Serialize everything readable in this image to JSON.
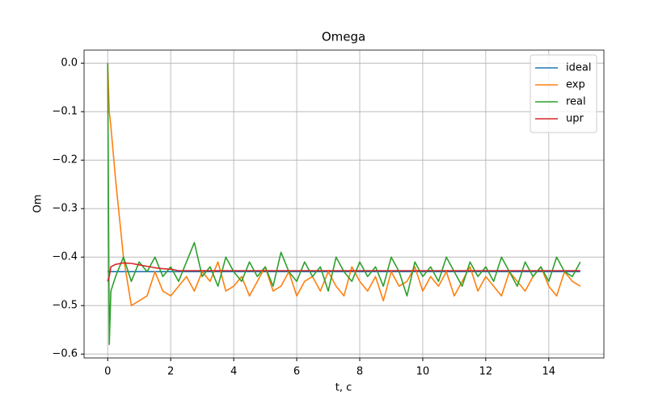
{
  "chart_data": {
    "type": "line",
    "title": "Omega",
    "x_label": "t, c",
    "y_label": "Om",
    "x": [
      0,
      0.05,
      0.1,
      0.25,
      0.5,
      0.75,
      1,
      1.25,
      1.5,
      1.75,
      2,
      2.25,
      2.5,
      2.75,
      3,
      3.25,
      3.5,
      3.75,
      4,
      4.25,
      4.5,
      4.75,
      5,
      5.25,
      5.5,
      5.75,
      6,
      6.25,
      6.5,
      6.75,
      7,
      7.25,
      7.5,
      7.75,
      8,
      8.25,
      8.5,
      8.75,
      9,
      9.25,
      9.5,
      9.75,
      10,
      10.25,
      10.5,
      10.75,
      11,
      11.25,
      11.5,
      11.75,
      12,
      12.25,
      12.5,
      12.75,
      13,
      13.25,
      13.5,
      13.75,
      14,
      14.25,
      14.5,
      14.75,
      15
    ],
    "series": [
      {
        "name": "ideal",
        "color": "#1f77b4",
        "values": [
          -0.43,
          -0.43,
          -0.43,
          -0.43,
          -0.43,
          -0.43,
          -0.43,
          -0.43,
          -0.43,
          -0.43,
          -0.43,
          -0.43,
          -0.43,
          -0.43,
          -0.43,
          -0.43,
          -0.43,
          -0.43,
          -0.43,
          -0.43,
          -0.43,
          -0.43,
          -0.43,
          -0.43,
          -0.43,
          -0.43,
          -0.43,
          -0.43,
          -0.43,
          -0.43,
          -0.43,
          -0.43,
          -0.43,
          -0.43,
          -0.43,
          -0.43,
          -0.43,
          -0.43,
          -0.43,
          -0.43,
          -0.43,
          -0.43,
          -0.43,
          -0.43,
          -0.43,
          -0.43,
          -0.43,
          -0.43,
          -0.43,
          -0.43,
          -0.43,
          -0.43,
          -0.43,
          -0.43,
          -0.43,
          -0.43,
          -0.43,
          -0.43,
          -0.43,
          -0.43,
          -0.43,
          -0.43,
          -0.43
        ]
      },
      {
        "name": "exp",
        "color": "#ff7f0e",
        "values": [
          0,
          -0.1,
          -0.13,
          -0.24,
          -0.4,
          -0.5,
          -0.49,
          -0.48,
          -0.43,
          -0.47,
          -0.48,
          -0.46,
          -0.44,
          -0.47,
          -0.43,
          -0.45,
          -0.41,
          -0.47,
          -0.46,
          -0.44,
          -0.48,
          -0.45,
          -0.42,
          -0.47,
          -0.46,
          -0.43,
          -0.48,
          -0.45,
          -0.44,
          -0.47,
          -0.43,
          -0.46,
          -0.48,
          -0.42,
          -0.45,
          -0.47,
          -0.44,
          -0.49,
          -0.43,
          -0.46,
          -0.45,
          -0.42,
          -0.47,
          -0.44,
          -0.46,
          -0.43,
          -0.48,
          -0.45,
          -0.42,
          -0.47,
          -0.44,
          -0.46,
          -0.48,
          -0.43,
          -0.45,
          -0.47,
          -0.44,
          -0.42,
          -0.46,
          -0.48,
          -0.43,
          -0.45,
          -0.46
        ]
      },
      {
        "name": "real",
        "color": "#2ca02c",
        "values": [
          0,
          -0.58,
          -0.47,
          -0.44,
          -0.4,
          -0.45,
          -0.41,
          -0.43,
          -0.4,
          -0.44,
          -0.42,
          -0.45,
          -0.41,
          -0.37,
          -0.44,
          -0.42,
          -0.46,
          -0.4,
          -0.43,
          -0.45,
          -0.41,
          -0.44,
          -0.42,
          -0.46,
          -0.39,
          -0.43,
          -0.45,
          -0.41,
          -0.44,
          -0.42,
          -0.47,
          -0.4,
          -0.43,
          -0.45,
          -0.41,
          -0.44,
          -0.42,
          -0.46,
          -0.4,
          -0.43,
          -0.48,
          -0.41,
          -0.44,
          -0.42,
          -0.45,
          -0.4,
          -0.43,
          -0.46,
          -0.41,
          -0.44,
          -0.42,
          -0.45,
          -0.4,
          -0.43,
          -0.46,
          -0.41,
          -0.44,
          -0.42,
          -0.45,
          -0.4,
          -0.43,
          -0.44,
          -0.41
        ]
      },
      {
        "name": "upr",
        "color": "#d62728",
        "values": [
          -0.45,
          -0.44,
          -0.42,
          -0.415,
          -0.412,
          -0.413,
          -0.416,
          -0.419,
          -0.422,
          -0.424,
          -0.425,
          -0.428,
          -0.428,
          -0.428,
          -0.428,
          -0.428,
          -0.428,
          -0.428,
          -0.428,
          -0.428,
          -0.428,
          -0.428,
          -0.428,
          -0.428,
          -0.428,
          -0.428,
          -0.428,
          -0.428,
          -0.428,
          -0.428,
          -0.428,
          -0.428,
          -0.428,
          -0.428,
          -0.428,
          -0.428,
          -0.428,
          -0.428,
          -0.428,
          -0.428,
          -0.428,
          -0.428,
          -0.428,
          -0.428,
          -0.428,
          -0.428,
          -0.428,
          -0.428,
          -0.428,
          -0.428,
          -0.428,
          -0.428,
          -0.428,
          -0.428,
          -0.428,
          -0.428,
          -0.428,
          -0.428,
          -0.428,
          -0.428,
          -0.428,
          -0.428,
          -0.428
        ]
      }
    ],
    "xlim": [
      -0.75,
      15.75
    ],
    "ylim": [
      -0.608,
      0.027
    ],
    "xticks": [
      0,
      2,
      4,
      6,
      8,
      10,
      12,
      14
    ],
    "yticks": [
      {
        "value": 0,
        "label": "0.0"
      },
      {
        "value": -0.1,
        "label": "−0.1"
      },
      {
        "value": -0.2,
        "label": "−0.2"
      },
      {
        "value": -0.3,
        "label": "−0.3"
      },
      {
        "value": -0.4,
        "label": "−0.4"
      },
      {
        "value": -0.5,
        "label": "−0.5"
      },
      {
        "value": -0.6,
        "label": "−0.6"
      }
    ],
    "grid": true,
    "legend": "upper-right"
  }
}
